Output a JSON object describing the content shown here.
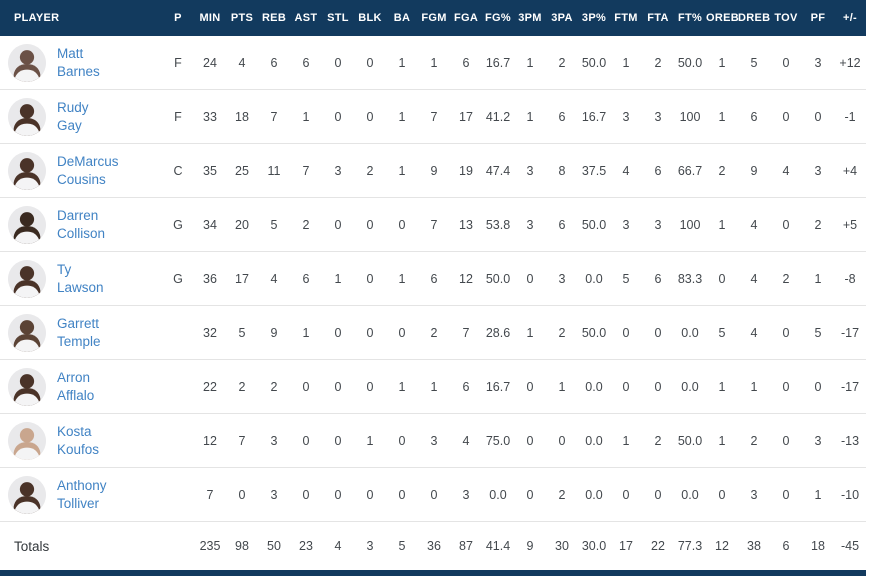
{
  "colors": {
    "header_bg": "#123a5e",
    "header_text": "#ffffff",
    "link": "#4183c4",
    "stat_text": "#43484d",
    "row_border": "#e4e4e4",
    "totals_border": "#d6d9db",
    "avatar_bg": "#e9e9eb",
    "jersey": "#f4f4f5",
    "footer_bar": "#123a5e"
  },
  "table": {
    "columns": [
      "PLAYER",
      "P",
      "MIN",
      "PTS",
      "REB",
      "AST",
      "STL",
      "BLK",
      "BA",
      "FGM",
      "FGA",
      "FG%",
      "3PM",
      "3PA",
      "3P%",
      "FTM",
      "FTA",
      "FT%",
      "OREB",
      "DREB",
      "TOV",
      "PF",
      "+/-"
    ],
    "rows": [
      {
        "first": "Matt",
        "last": "Barnes",
        "skin": "#6b5146",
        "stats": [
          "F",
          "24",
          "4",
          "6",
          "6",
          "0",
          "0",
          "1",
          "1",
          "6",
          "16.7",
          "1",
          "2",
          "50.0",
          "1",
          "2",
          "50.0",
          "1",
          "5",
          "0",
          "3",
          "+12"
        ]
      },
      {
        "first": "Rudy",
        "last": "Gay",
        "skin": "#4a3328",
        "stats": [
          "F",
          "33",
          "18",
          "7",
          "1",
          "0",
          "0",
          "1",
          "7",
          "17",
          "41.2",
          "1",
          "6",
          "16.7",
          "3",
          "3",
          "100",
          "1",
          "6",
          "0",
          "0",
          "-1"
        ]
      },
      {
        "first": "DeMarcus",
        "last": "Cousins",
        "skin": "#4a3328",
        "stats": [
          "C",
          "35",
          "25",
          "11",
          "7",
          "3",
          "2",
          "1",
          "9",
          "19",
          "47.4",
          "3",
          "8",
          "37.5",
          "4",
          "6",
          "66.7",
          "2",
          "9",
          "4",
          "3",
          "+4"
        ]
      },
      {
        "first": "Darren",
        "last": "Collison",
        "skin": "#3a2a20",
        "stats": [
          "G",
          "34",
          "20",
          "5",
          "2",
          "0",
          "0",
          "0",
          "7",
          "13",
          "53.8",
          "3",
          "6",
          "50.0",
          "3",
          "3",
          "100",
          "1",
          "4",
          "0",
          "2",
          "+5"
        ]
      },
      {
        "first": "Ty",
        "last": "Lawson",
        "skin": "#4a3328",
        "stats": [
          "G",
          "36",
          "17",
          "4",
          "6",
          "1",
          "0",
          "1",
          "6",
          "12",
          "50.0",
          "0",
          "3",
          "0.0",
          "5",
          "6",
          "83.3",
          "0",
          "4",
          "2",
          "1",
          "-8"
        ]
      },
      {
        "first": "Garrett",
        "last": "Temple",
        "skin": "#5b4335",
        "stats": [
          "",
          "32",
          "5",
          "9",
          "1",
          "0",
          "0",
          "0",
          "2",
          "7",
          "28.6",
          "1",
          "2",
          "50.0",
          "0",
          "0",
          "0.0",
          "5",
          "4",
          "0",
          "5",
          "-17"
        ]
      },
      {
        "first": "Arron",
        "last": "Afflalo",
        "skin": "#4a3328",
        "stats": [
          "",
          "22",
          "2",
          "2",
          "0",
          "0",
          "0",
          "1",
          "1",
          "6",
          "16.7",
          "0",
          "1",
          "0.0",
          "0",
          "0",
          "0.0",
          "1",
          "1",
          "0",
          "0",
          "-17"
        ]
      },
      {
        "first": "Kosta",
        "last": "Koufos",
        "skin": "#c9a68e",
        "stats": [
          "",
          "12",
          "7",
          "3",
          "0",
          "0",
          "1",
          "0",
          "3",
          "4",
          "75.0",
          "0",
          "0",
          "0.0",
          "1",
          "2",
          "50.0",
          "1",
          "2",
          "0",
          "3",
          "-13"
        ]
      },
      {
        "first": "Anthony",
        "last": "Tolliver",
        "skin": "#4a3328",
        "stats": [
          "",
          "7",
          "0",
          "3",
          "0",
          "0",
          "0",
          "0",
          "0",
          "3",
          "0.0",
          "0",
          "2",
          "0.0",
          "0",
          "0",
          "0.0",
          "0",
          "3",
          "0",
          "1",
          "-10"
        ]
      }
    ],
    "totals": {
      "label": "Totals",
      "stats": [
        "",
        "235",
        "98",
        "50",
        "23",
        "4",
        "3",
        "5",
        "36",
        "87",
        "41.4",
        "9",
        "30",
        "30.0",
        "17",
        "22",
        "77.3",
        "12",
        "38",
        "6",
        "18",
        "-45"
      ]
    }
  }
}
